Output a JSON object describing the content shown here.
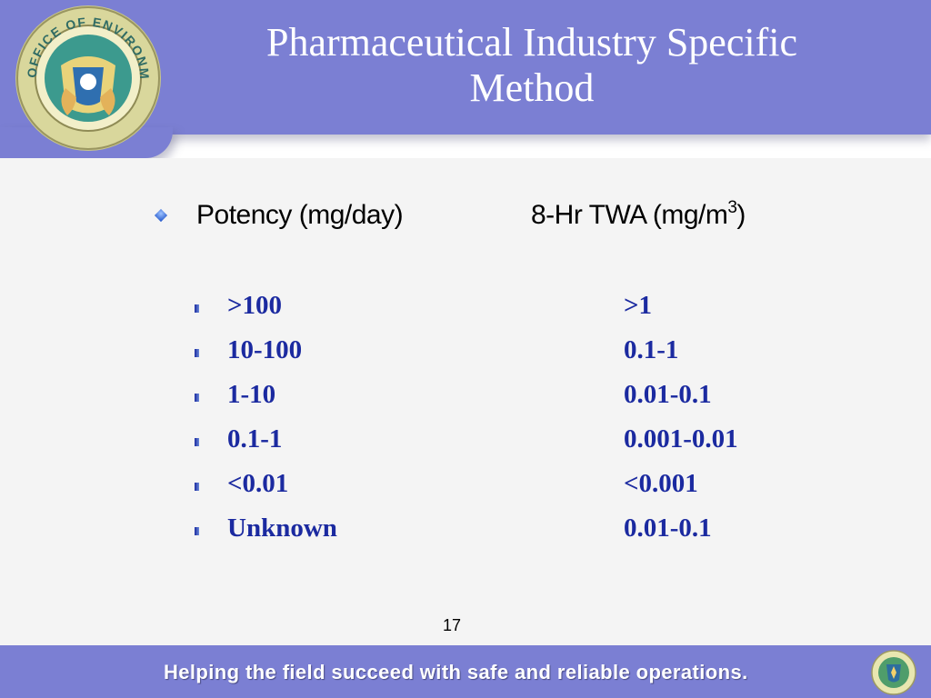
{
  "slide": {
    "title_line1": "Pharmaceutical Industry Specific",
    "title_line2": "Method",
    "seal_text": "OFFICE OF ENVIRONMENT, SAFETY AND HEALTH",
    "page_number": "17"
  },
  "table": {
    "header_left": "Potency (mg/day)",
    "header_right_base": "8-Hr TWA (mg/m",
    "header_right_sup": "3",
    "header_right_close": ")",
    "rows": [
      {
        "potency": ">100",
        "twa": ">1"
      },
      {
        "potency": "10-100",
        "twa": "0.1-1"
      },
      {
        "potency": "1-10",
        "twa": "0.01-0.1"
      },
      {
        "potency": "0.1-1",
        "twa": "0.001-0.01"
      },
      {
        "potency": "<0.01",
        "twa": "<0.001"
      },
      {
        "potency": "Unknown",
        "twa": "0.01-0.1"
      }
    ]
  },
  "footer": {
    "tagline": "Helping the field succeed with safe and reliable operations."
  },
  "colors": {
    "header_bg": "#7b7fd3",
    "content_bg": "#f4f4f4",
    "row_text": "#1b2aa0"
  }
}
